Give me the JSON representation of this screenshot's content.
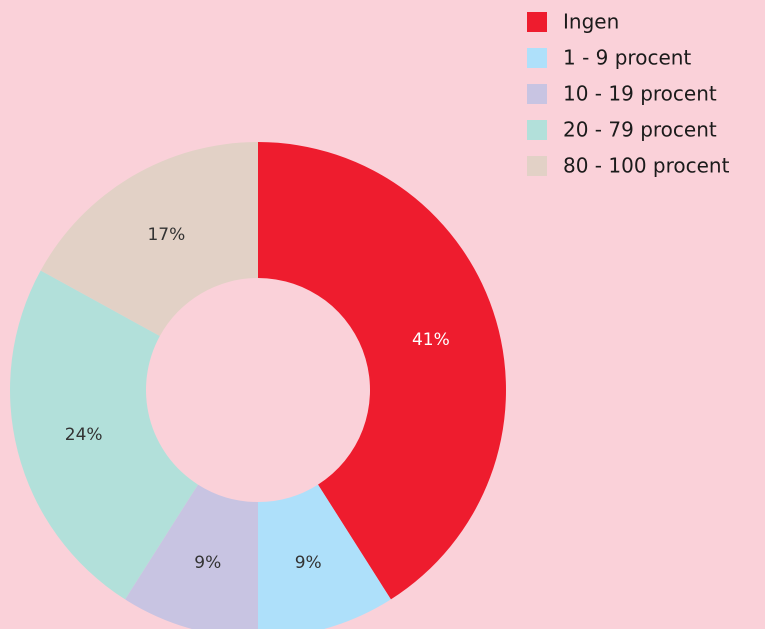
{
  "chart_data": {
    "type": "donut",
    "categories": [
      "Ingen",
      "1 - 9 procent",
      "10 - 19 procent",
      "20 - 79 procent",
      "80 - 100 procent"
    ],
    "values": [
      41,
      9,
      9,
      24,
      17
    ],
    "value_labels": [
      "41%",
      "9%",
      "9%",
      "24%",
      "17%"
    ],
    "colors": [
      "#ee1c2e",
      "#aee0fa",
      "#c8c4e2",
      "#b2e0da",
      "#e2d1c6"
    ],
    "legend": "top-right"
  }
}
